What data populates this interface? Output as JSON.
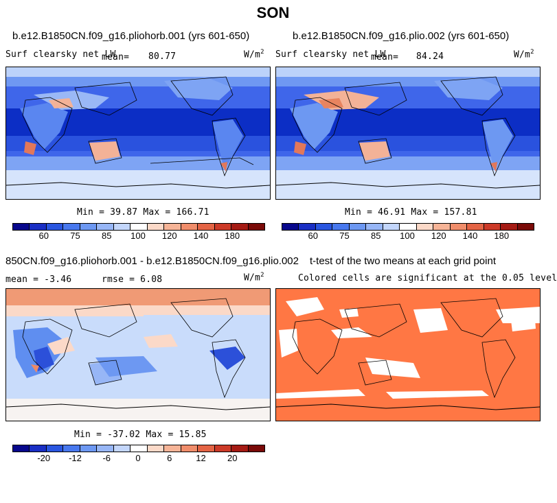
{
  "page_title": "SON",
  "panels": {
    "p1": {
      "case": "b.e12.B1850CN.f09_g16.pliohorb.001 (yrs 601-650)",
      "var": "Surf clearsky net LW",
      "mean_label": "mean=",
      "mean": "80.77",
      "units": "W/m",
      "units_exp": "2",
      "stats": "Min =  39.87 Max = 166.71",
      "ticks": [
        "60",
        "75",
        "85",
        "100",
        "120",
        "140",
        "180"
      ]
    },
    "p2": {
      "case": "b.e12.B1850CN.f09_g16.plio.002 (yrs 601-650)",
      "var": "Surf clearsky net LW",
      "mean_label": "mean=",
      "mean": "84.24",
      "units": "W/m",
      "units_exp": "2",
      "stats": "Min =  46.91 Max = 157.81",
      "ticks": [
        "60",
        "75",
        "85",
        "100",
        "120",
        "140",
        "180"
      ]
    },
    "p3": {
      "case": "850CN.f09_g16.pliohorb.001 - b.e12.B1850CN.f09_g16.plio.002",
      "mean_text": "mean =  -3.46",
      "rmse_text": "rmse =   6.08",
      "units": "W/m",
      "units_exp": "2",
      "stats": "Min = -37.02 Max =  15.85",
      "ticks": [
        "-20",
        "-12",
        "-6",
        "0",
        "6",
        "12",
        "20"
      ]
    },
    "p4": {
      "title": "t-test of the two means at each grid point",
      "subtitle": "Colored cells are significant at the 0.05 level"
    }
  },
  "colors": {
    "scale": [
      "#08088c",
      "#1a2fc4",
      "#2a56e0",
      "#4878ee",
      "#6d98f2",
      "#97b6f6",
      "#c3d6fb",
      "#ffffff",
      "#fbd9c8",
      "#f6b497",
      "#f08d6b",
      "#e46445",
      "#cc3a28",
      "#a51b14",
      "#7a0a08"
    ],
    "ocean_base": "#3b62e8",
    "tropical_band": "#0d2fc7",
    "southern_ocean": "#cfe0fb",
    "diff_base": "#c9dcfb",
    "signif": "#ff7744"
  }
}
